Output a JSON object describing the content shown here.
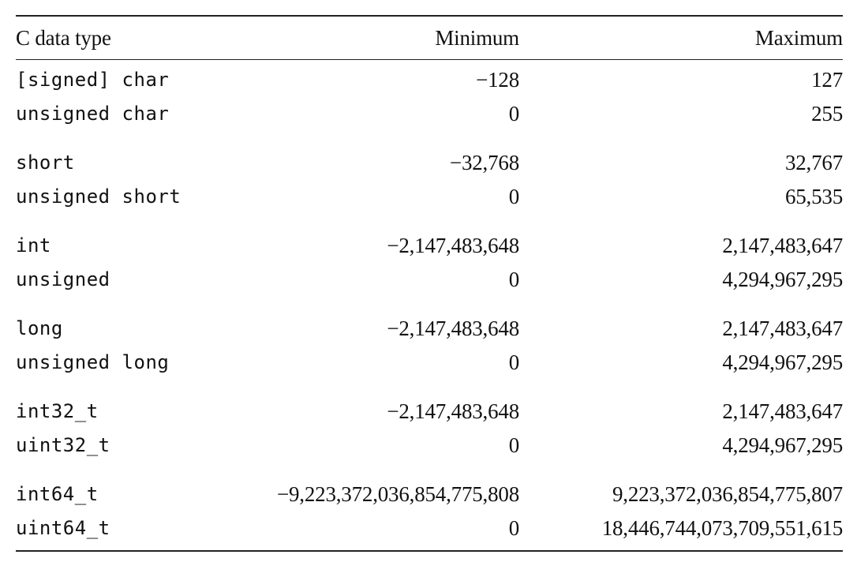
{
  "table": {
    "headers": {
      "type": "C data type",
      "min": "Minimum",
      "max": "Maximum"
    },
    "groups": [
      [
        {
          "type": "[signed] char",
          "min": "−128",
          "max": "127"
        },
        {
          "type": "unsigned char",
          "min": "0",
          "max": "255"
        }
      ],
      [
        {
          "type": "short",
          "min": "−32,768",
          "max": "32,767"
        },
        {
          "type": "unsigned short",
          "min": "0",
          "max": "65,535"
        }
      ],
      [
        {
          "type": "int",
          "min": "−2,147,483,648",
          "max": "2,147,483,647"
        },
        {
          "type": "unsigned",
          "min": "0",
          "max": "4,294,967,295"
        }
      ],
      [
        {
          "type": "long",
          "min": "−2,147,483,648",
          "max": "2,147,483,647"
        },
        {
          "type": "unsigned long",
          "min": "0",
          "max": "4,294,967,295"
        }
      ],
      [
        {
          "type": "int32_t",
          "min": "−2,147,483,648",
          "max": "2,147,483,647"
        },
        {
          "type": "uint32_t",
          "min": "0",
          "max": "4,294,967,295"
        }
      ],
      [
        {
          "type": "int64_t",
          "min": "−9,223,372,036,854,775,808",
          "max": "9,223,372,036,854,775,807"
        },
        {
          "type": "uint64_t",
          "min": "0",
          "max": "18,446,744,073,709,551,615"
        }
      ]
    ]
  }
}
